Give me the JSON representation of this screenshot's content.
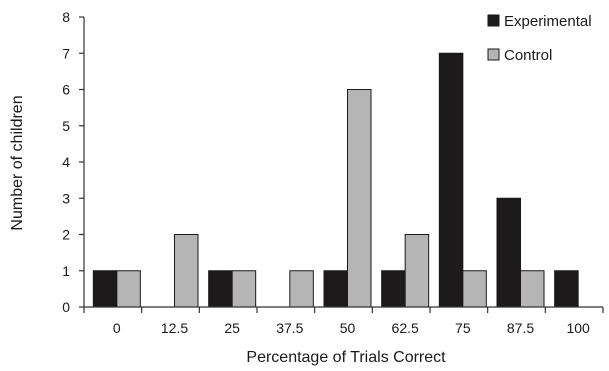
{
  "chart_data": {
    "type": "bar",
    "title": "",
    "xlabel": "Percentage of Trials Correct",
    "ylabel": "Number of children",
    "ylim": [
      0,
      8
    ],
    "yticks": [
      "0",
      "1",
      "2",
      "3",
      "4",
      "5",
      "6",
      "7",
      "8"
    ],
    "categories": [
      "0",
      "12.5",
      "25",
      "37.5",
      "50",
      "62.5",
      "75",
      "87.5",
      "100"
    ],
    "series": [
      {
        "name": "Experimental",
        "color": "#1c1a1a",
        "values": [
          1,
          0,
          1,
          0,
          1,
          1,
          7,
          3,
          1
        ]
      },
      {
        "name": "Control",
        "color": "#b5b5b5",
        "values": [
          1,
          2,
          1,
          1,
          6,
          2,
          1,
          1,
          0
        ]
      }
    ],
    "legend": "top-right",
    "grid": false
  }
}
